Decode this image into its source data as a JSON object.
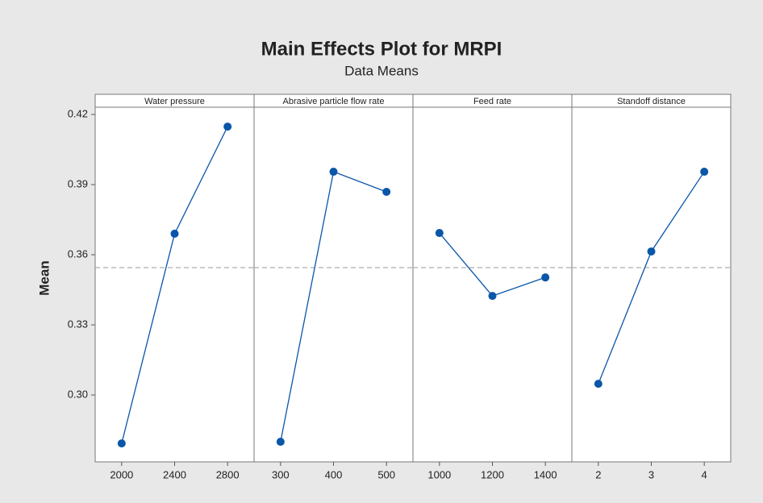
{
  "chart_data": {
    "type": "line",
    "title": "Main Effects Plot for MRPI",
    "subtitle": "Data Means",
    "ylabel": "Mean",
    "ylim": [
      0.2714,
      0.4231
    ],
    "yticks": [
      {
        "value": 0.3,
        "label": "0.30"
      },
      0.33,
      0.36,
      0.39,
      0.42
    ],
    "reference_line": 0.3545,
    "color": "#0a56a8",
    "panels": [
      {
        "name": "Water pressure",
        "categories": [
          "2000",
          "2400",
          "2800"
        ],
        "values": [
          0.2793,
          0.369,
          0.4148
        ]
      },
      {
        "name": "Abrasive particle flow rate",
        "categories": [
          "300",
          "400",
          "500"
        ],
        "values": [
          0.28,
          0.3955,
          0.3869
        ]
      },
      {
        "name": "Feed rate",
        "categories": [
          "1000",
          "1200",
          "1400"
        ],
        "values": [
          0.3693,
          0.3424,
          0.3503
        ]
      },
      {
        "name": "Standoff distance",
        "categories": [
          "2",
          "3",
          "4"
        ],
        "values": [
          0.3048,
          0.3614,
          0.3955
        ]
      }
    ]
  }
}
